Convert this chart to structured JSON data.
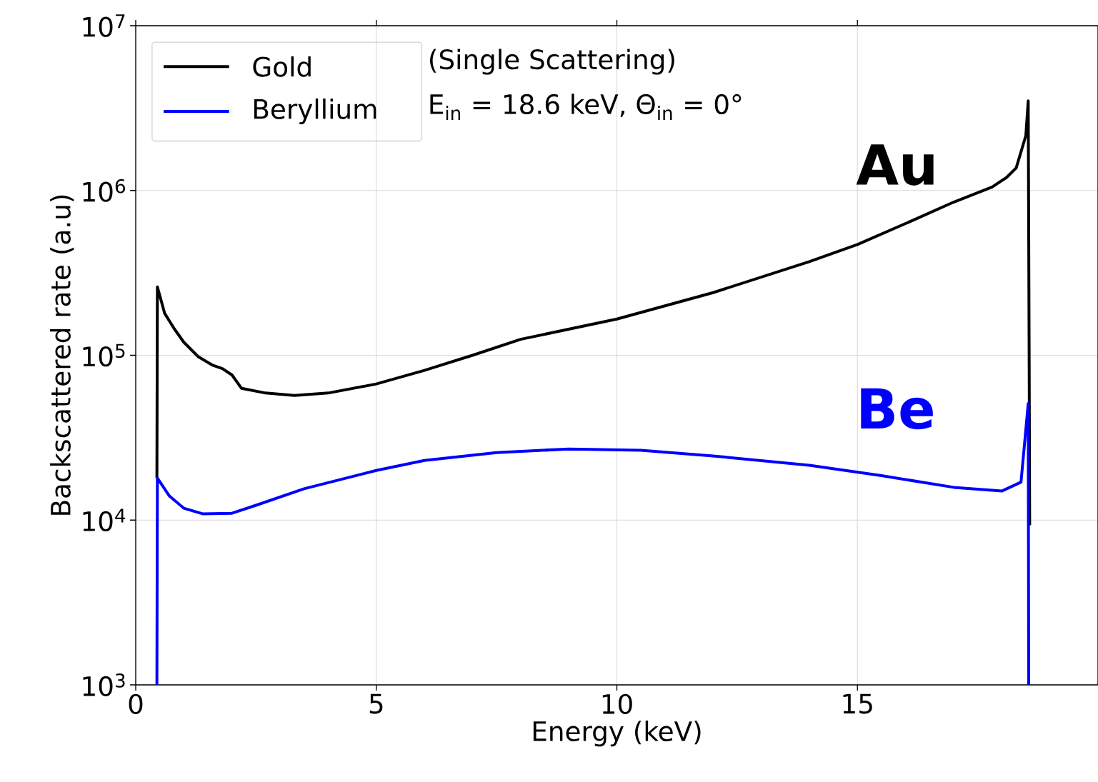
{
  "chart_data": {
    "type": "line",
    "xlabel": "Energy (keV)",
    "ylabel": "Backscattered rate (a.u)",
    "xlim": [
      0,
      20
    ],
    "xticks": [
      0,
      5,
      10,
      15
    ],
    "ylim": [
      1000,
      10000000
    ],
    "yticks": [
      {
        "value": 1000,
        "label": "10$^{3}$"
      },
      {
        "value": 10000,
        "label": "10$^{4}$"
      },
      {
        "value": 100000,
        "label": "10$^{5}$"
      },
      {
        "value": 1000000,
        "label": "10$^{6}$"
      },
      {
        "value": 10000000,
        "label": "10$^{7}$"
      }
    ],
    "log": "y",
    "grid": true,
    "legend": "top left",
    "series": [
      {
        "name": "Gold",
        "color": "#000000",
        "x": [
          0.44,
          0.45,
          0.6,
          0.8,
          1.0,
          1.3,
          1.6,
          1.8,
          2.0,
          2.2,
          2.7,
          3.3,
          4,
          5,
          6,
          7,
          8,
          10,
          12,
          14,
          15,
          16,
          17,
          17.8,
          18.1,
          18.3,
          18.5,
          18.55,
          18.57,
          18.58
        ],
        "values": [
          18000,
          260000,
          180000,
          145000,
          120000,
          98000,
          87000,
          83000,
          76000,
          63000,
          59000,
          57000,
          59000,
          67000,
          81000,
          100000,
          125000,
          166000,
          240000,
          370000,
          470000,
          630000,
          850000,
          1050000,
          1200000,
          1370000,
          2150000,
          3500000,
          89000,
          9300
        ]
      },
      {
        "name": "Beryllium",
        "color": "#0000ff",
        "x": [
          0.44,
          0.45,
          0.7,
          1.0,
          1.4,
          2,
          2.5,
          3.5,
          5,
          6,
          7.5,
          9,
          10.5,
          12,
          14,
          15.5,
          17,
          18,
          18.4,
          18.55,
          18.56
        ],
        "values": [
          1000,
          18000,
          14000,
          11800,
          10900,
          11000,
          12300,
          15500,
          20000,
          23000,
          25700,
          27000,
          26500,
          24500,
          21500,
          18600,
          15800,
          15000,
          17000,
          51000,
          1000
        ]
      }
    ],
    "annotations": [
      "(Single Scattering)",
      "E$_{in}$ = 18.6 keV, Θ$_{in}$ = 0°",
      "Au",
      "Be"
    ]
  }
}
